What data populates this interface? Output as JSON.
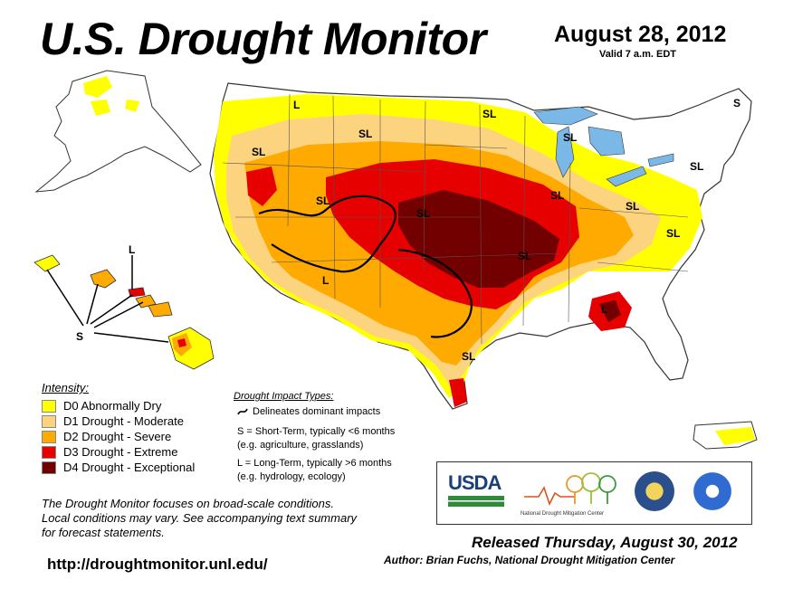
{
  "header": {
    "title": "U.S. Drought Monitor",
    "date": "August 28, 2012",
    "valid": "Valid 7 a.m. EDT"
  },
  "legend": {
    "title": "Intensity:",
    "items": [
      {
        "label": "D0 Abnormally Dry",
        "color": "#ffff00"
      },
      {
        "label": "D1 Drought - Moderate",
        "color": "#fcd37f"
      },
      {
        "label": "D2 Drought - Severe",
        "color": "#ffaa00"
      },
      {
        "label": "D3 Drought - Extreme",
        "color": "#e60000"
      },
      {
        "label": "D4 Drought - Exceptional",
        "color": "#730000"
      }
    ]
  },
  "impact": {
    "title": "Drought Impact Types:",
    "line_label": "Delineates dominant impacts",
    "short_term": [
      "S = Short-Term, typically <6 months",
      "(e.g. agriculture, grasslands)"
    ],
    "long_term": [
      "L = Long-Term, typically >6 months",
      "(e.g. hydrology, ecology)"
    ]
  },
  "note": [
    "The Drought Monitor focuses on broad-scale conditions.",
    "Local conditions may vary. See accompanying text summary",
    "for forecast statements."
  ],
  "url": "http://droughtmonitor.unl.edu/",
  "logos": {
    "usda": "USDA",
    "ndmc": "National Drought Mitigation Center"
  },
  "released": "Released Thursday, August 30, 2012",
  "author": "Author: Brian Fuchs, National Drought Mitigation Center",
  "map_labels": {
    "sl": "SL",
    "l": "L",
    "s": "S"
  },
  "colors": {
    "none": "#ffffff",
    "d0": "#ffff00",
    "d1": "#fcd37f",
    "d2": "#ffaa00",
    "d3": "#e60000",
    "d4": "#730000",
    "water": "#7ab8e8",
    "border": "#333333"
  }
}
